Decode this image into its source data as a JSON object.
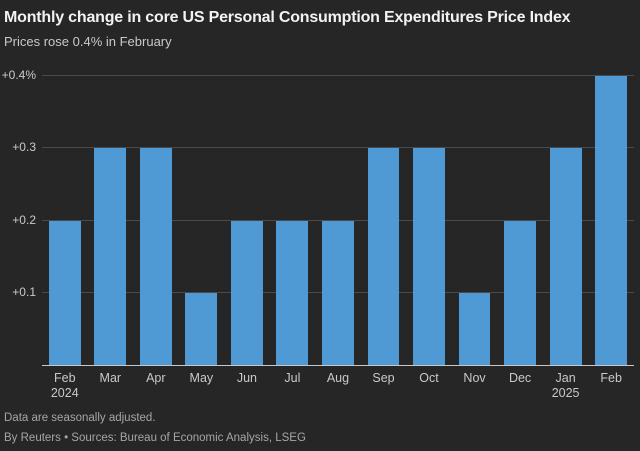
{
  "header": {
    "title": "Monthly change in core US Personal Consumption Expenditures Price Index",
    "subtitle": "Prices rose 0.4% in February"
  },
  "chart_data": {
    "type": "bar",
    "title": "Monthly change in core US Personal Consumption Expenditures Price Index",
    "subtitle": "Prices rose 0.4% in February",
    "categories": [
      {
        "month": "Feb",
        "year": "2024"
      },
      {
        "month": "Mar"
      },
      {
        "month": "Apr"
      },
      {
        "month": "May"
      },
      {
        "month": "Jun"
      },
      {
        "month": "Jul"
      },
      {
        "month": "Aug"
      },
      {
        "month": "Sep"
      },
      {
        "month": "Oct"
      },
      {
        "month": "Nov"
      },
      {
        "month": "Dec"
      },
      {
        "month": "Jan",
        "year": "2025"
      },
      {
        "month": "Feb"
      }
    ],
    "values": [
      0.2,
      0.3,
      0.3,
      0.1,
      0.2,
      0.2,
      0.2,
      0.3,
      0.3,
      0.1,
      0.2,
      0.3,
      0.4
    ],
    "unit": "%",
    "ylim": [
      0,
      0.4
    ],
    "yticks": [
      {
        "value": 0.1,
        "label": "+0.1"
      },
      {
        "value": 0.2,
        "label": "+0.2"
      },
      {
        "value": 0.3,
        "label": "+0.3"
      },
      {
        "value": 0.4,
        "label": "+0.4%"
      }
    ],
    "grid": true,
    "legend": "none",
    "colors": {
      "bar": "#4f9ad5",
      "background": "#262626",
      "gridline": "#4a4a4a",
      "axis_line": "#c8c8c8",
      "tick_text": "#c9c9c9"
    }
  },
  "footer": {
    "note": "Data are seasonally adjusted.",
    "source": "By Reuters • Sources: Bureau of Economic Analysis, LSEG"
  }
}
